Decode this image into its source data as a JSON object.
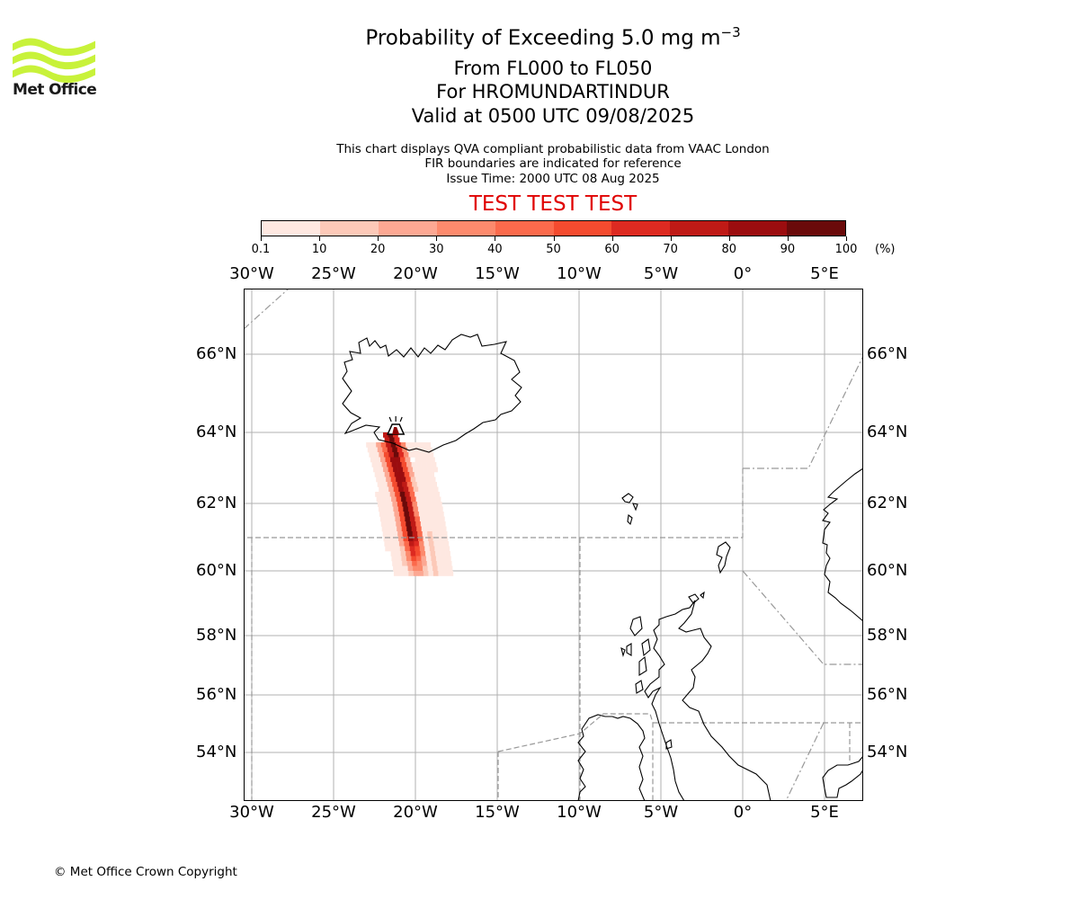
{
  "logo": {
    "brand": "Met Office",
    "icon": "met-office-wave-logo",
    "color": "#c8f23a"
  },
  "title": {
    "line1_main": "Probability of Exceeding 5.0 mg m",
    "line1_sup": "−3",
    "line2": "From FL000 to FL050",
    "line3": "For HROMUNDARTINDUR",
    "line4": "Valid at 0500 UTC 09/08/2025"
  },
  "info": {
    "line1": "This chart displays QVA compliant probabilistic data from VAAC London",
    "line2": "FIR boundaries are indicated for reference",
    "line3": "Issue Time: 2000 UTC 08 Aug 2025"
  },
  "test_banner": "TEST TEST TEST",
  "colorbar": {
    "ticks": [
      "0.1",
      "10",
      "20",
      "30",
      "40",
      "50",
      "60",
      "70",
      "80",
      "90",
      "100"
    ],
    "unit": "(%)",
    "colors": [
      "#fee8e1",
      "#fcc9b8",
      "#fca893",
      "#fc8a6d",
      "#fb6a4c",
      "#f44b2f",
      "#dd2a21",
      "#bf1a16",
      "#9b0d0f",
      "#6a0a0a"
    ]
  },
  "axes": {
    "lon_labels": [
      "30°W",
      "25°W",
      "20°W",
      "15°W",
      "10°W",
      "5°W",
      "0°",
      "5°E"
    ],
    "lat_labels": [
      "66°N",
      "64°N",
      "62°N",
      "60°N",
      "58°N",
      "56°N",
      "54°N"
    ]
  },
  "volcano": {
    "name": "HROMUNDARTINDUR",
    "icon": "volcano-icon",
    "lon": -21.2,
    "lat": 64.07
  },
  "plume": {
    "description_free": true
  },
  "copyright": "© Met Office Crown Copyright"
}
